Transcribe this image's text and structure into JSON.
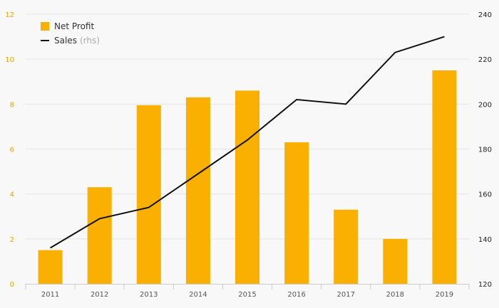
{
  "chart_data": {
    "type": "bar+line",
    "categories": [
      "2011",
      "2012",
      "2013",
      "2014",
      "2015",
      "2016",
      "2017",
      "2018",
      "2019"
    ],
    "series": [
      {
        "name": "Net Profit",
        "type": "bar",
        "axis": "left",
        "values": [
          1.5,
          4.3,
          7.95,
          8.3,
          8.6,
          6.3,
          3.3,
          2.0,
          9.5
        ]
      },
      {
        "name": "Sales",
        "type": "line",
        "axis": "right",
        "values": [
          136,
          149,
          154,
          169,
          184,
          202,
          200,
          223,
          230
        ]
      }
    ],
    "left_axis": {
      "ylim": [
        0,
        12
      ],
      "ticks": [
        "0",
        "2",
        "4",
        "6",
        "8",
        "10",
        "12"
      ]
    },
    "right_axis": {
      "ylim": [
        120,
        240
      ],
      "ticks": [
        "120",
        "140",
        "160",
        "180",
        "200",
        "220",
        "240"
      ]
    },
    "grid": true,
    "legend_position": "top-left"
  },
  "legend": {
    "net_profit": "Net Profit",
    "sales": "Sales",
    "sales_suffix": "(rhs)"
  },
  "colors": {
    "bar": "#f9b000",
    "line": "#111111",
    "left_axis_text": "#e0a800",
    "grid": "#e4e4e4"
  }
}
